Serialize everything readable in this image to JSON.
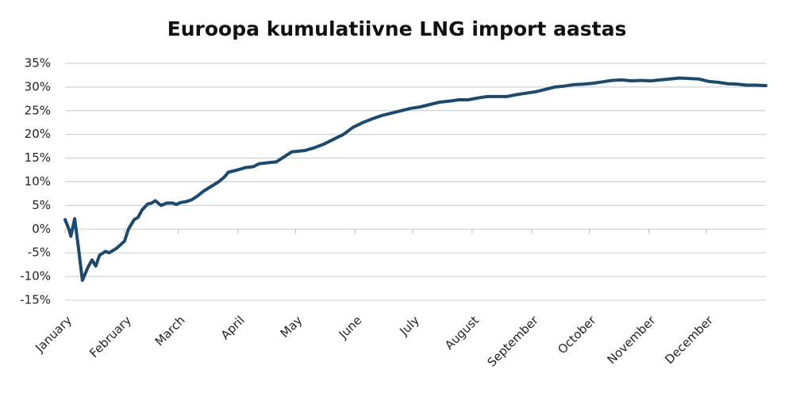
{
  "chart_data": {
    "type": "line",
    "title": "Euroopa kumulatiivne LNG import aastas",
    "x": [
      0,
      2,
      3,
      5,
      7,
      9,
      12,
      14,
      16,
      18,
      21,
      23,
      27,
      31,
      33,
      36,
      38,
      40,
      43,
      45,
      47,
      50,
      53,
      56,
      58,
      60,
      63,
      66,
      69,
      72,
      76,
      80,
      83,
      85,
      90,
      94,
      98,
      101,
      105,
      110,
      115,
      118,
      125,
      130,
      135,
      140,
      145,
      150,
      155,
      160,
      165,
      170,
      175,
      180,
      185,
      190,
      195,
      200,
      205,
      210,
      215,
      220,
      225,
      230,
      235,
      240,
      245,
      250,
      255,
      260,
      265,
      270,
      275,
      280,
      285,
      290,
      295,
      300,
      305,
      310,
      315,
      320,
      325,
      330,
      335,
      340,
      345,
      350,
      355,
      360,
      365
    ],
    "series": [
      {
        "name": "LNG import",
        "color": "#1b4a6e",
        "values": [
          2,
          0,
          -1.5,
          2.2,
          -4,
          -10.8,
          -8,
          -6.5,
          -7.8,
          -5.5,
          -4.7,
          -5,
          -4,
          -2.5,
          0,
          2,
          2.5,
          4,
          5.3,
          5.5,
          6,
          5,
          5.5,
          5.5,
          5.2,
          5.6,
          5.8,
          6.2,
          7,
          8,
          9,
          10,
          11,
          12,
          12.5,
          13,
          13.2,
          13.8,
          14,
          14.2,
          15.5,
          16.3,
          16.6,
          17.2,
          18,
          19,
          20,
          21.5,
          22.5,
          23.3,
          24,
          24.5,
          25,
          25.5,
          25.8,
          26.3,
          26.8,
          27,
          27.3,
          27.3,
          27.7,
          28,
          28,
          28,
          28.4,
          28.7,
          29,
          29.5,
          30,
          30.2,
          30.5,
          30.6,
          30.8,
          31.1,
          31.4,
          31.5,
          31.3,
          31.4,
          31.3,
          31.5,
          31.7,
          31.9,
          31.8,
          31.7,
          31.2,
          31,
          30.7,
          30.6,
          30.4,
          30.4,
          30.3
        ]
      }
    ],
    "xlim": [
      0,
      365
    ],
    "xticks": [
      {
        "value": 0,
        "label": "January"
      },
      {
        "value": 31,
        "label": "February"
      },
      {
        "value": 59,
        "label": "March"
      },
      {
        "value": 90,
        "label": "April"
      },
      {
        "value": 120,
        "label": "May"
      },
      {
        "value": 151,
        "label": "June"
      },
      {
        "value": 181,
        "label": "July"
      },
      {
        "value": 212,
        "label": "August"
      },
      {
        "value": 243,
        "label": "September"
      },
      {
        "value": 273,
        "label": "October"
      },
      {
        "value": 304,
        "label": "November"
      },
      {
        "value": 334,
        "label": "December"
      }
    ],
    "ylim": [
      -15,
      35
    ],
    "yticks": [
      {
        "value": 35,
        "label": "35%"
      },
      {
        "value": 30,
        "label": "30%"
      },
      {
        "value": 25,
        "label": "25%"
      },
      {
        "value": 20,
        "label": "20%"
      },
      {
        "value": 15,
        "label": "15%"
      },
      {
        "value": 10,
        "label": "10%"
      },
      {
        "value": 5,
        "label": "5%"
      },
      {
        "value": 0,
        "label": "0%"
      },
      {
        "value": -5,
        "label": "-5%"
      },
      {
        "value": -10,
        "label": "-10%"
      },
      {
        "value": -15,
        "label": "-15%"
      }
    ],
    "grid": true
  }
}
